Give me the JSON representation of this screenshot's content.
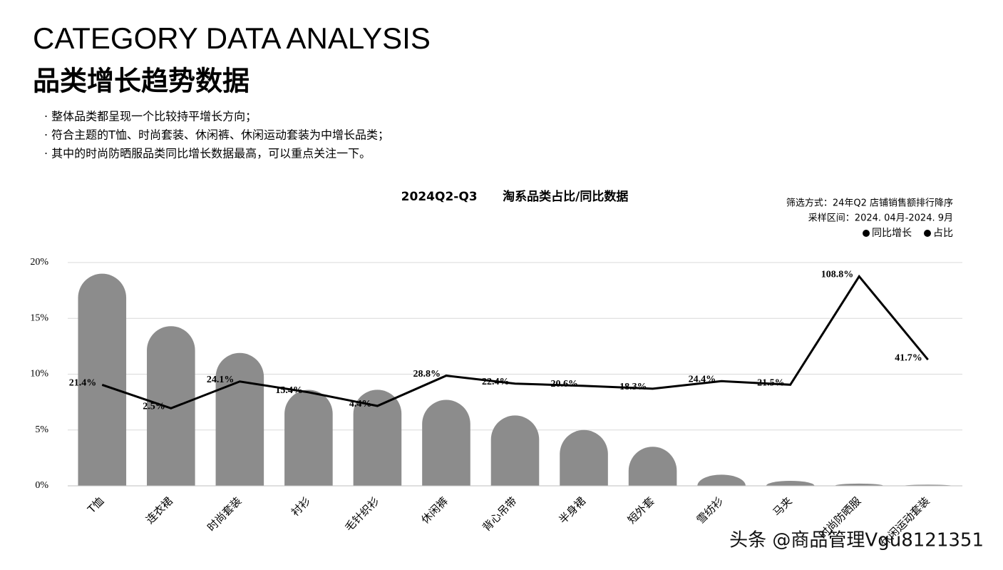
{
  "header": {
    "title": "CATEGORY DATA ANALYSIS",
    "subtitle": "品类增长趋势数据",
    "bullets": [
      "· 整体品类都呈现一个比较持平增长方向；",
      "· 符合主题的T恤、时尚套装、休闲裤、休闲运动套装为中增长品类；",
      "· 其中的时尚防晒服品类同比增长数据最高，可以重点关注一下。"
    ]
  },
  "chart_data": {
    "type": "bar",
    "title": "2024Q2-Q3      淘系品类占比/同比数据",
    "notes": [
      "筛选方式：24年Q2 店铺销售额排行降序",
      "采样区间：2024. 04月-2024. 9月"
    ],
    "categories": [
      "T恤",
      "连衣裙",
      "时尚套装",
      "衬衫",
      "毛针织衫",
      "休闲裤",
      "背心吊带",
      "半身裙",
      "短外套",
      "雪纺衫",
      "马夹",
      "时尚防晒服",
      "休闲运动套装"
    ],
    "series": [
      {
        "name": "占比",
        "color": "#8c8c8c",
        "values": [
          19.0,
          14.3,
          11.9,
          8.6,
          8.6,
          7.7,
          6.3,
          5.0,
          3.5,
          1.0,
          0.45,
          0.2,
          0.1
        ]
      },
      {
        "name": "同比增长",
        "type": "line",
        "axis": "y2",
        "color": "#000000",
        "values": [
          21.4,
          2.5,
          24.1,
          15.4,
          4.4,
          28.8,
          22.4,
          20.6,
          18.3,
          24.4,
          21.5,
          108.8,
          41.7
        ],
        "value_labels": [
          "21.4%",
          "2.5%",
          "24.1%",
          "15.4%",
          "4.4%",
          "28.8%",
          "22.4%",
          "20.6%",
          "18.3%",
          "24.4%",
          "21.5%",
          "108.8%",
          "41.7%"
        ]
      }
    ],
    "ylim": [
      0,
      20
    ],
    "yticks": [
      {
        "value": 0,
        "label": "0%"
      },
      {
        "value": 5,
        "label": "5%"
      },
      {
        "value": 10,
        "label": "10%"
      },
      {
        "value": 15,
        "label": "15%"
      },
      {
        "value": 20,
        "label": "20%"
      }
    ],
    "y2lim": [
      -60,
      120
    ],
    "grid": true,
    "legend_position": "top-right",
    "watermark": "头条 @商品管理Vgu8121351"
  }
}
